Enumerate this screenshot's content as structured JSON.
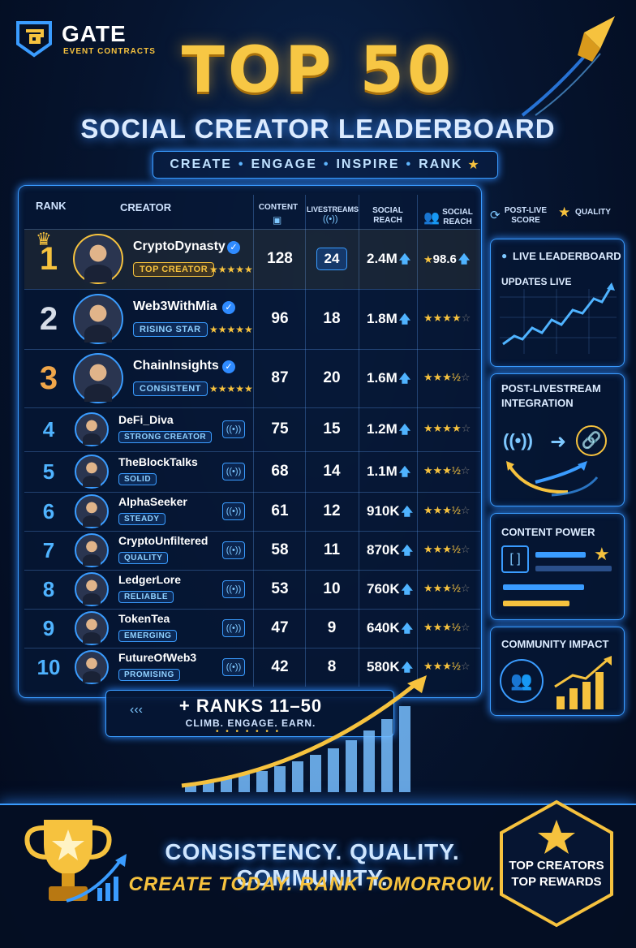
{
  "brand": {
    "name": "GATE",
    "sub": "EVENT CONTRACTS"
  },
  "title": {
    "main": "TOP 50",
    "sub": "SOCIAL CREATOR LEADERBOARD"
  },
  "tagline": [
    "CREATE",
    "ENGAGE",
    "INSPIRE",
    "RANK"
  ],
  "table": {
    "headers": {
      "rank": "RANK",
      "creator": "CREATOR",
      "content": "CONTENT",
      "livestreams": "LIVESTREAMS",
      "social_reach": "SOCIAL REACH",
      "social_reach2": "SOCIAL REACH",
      "post_live": "POST-LIVE SCORE",
      "quality": "QUALITY"
    },
    "rows": [
      {
        "rank": "1",
        "name": "CryptoDynasty",
        "badge": "TOP CREATOR",
        "content": "128",
        "livestreams": "24",
        "reach": "2.4M",
        "score": "98.6"
      },
      {
        "rank": "2",
        "name": "Web3WithMia",
        "badge": "RISING STAR",
        "content": "96",
        "livestreams": "18",
        "reach": "1.8M",
        "score": ""
      },
      {
        "rank": "3",
        "name": "ChainInsights",
        "badge": "CONSISTENT",
        "content": "87",
        "livestreams": "20",
        "reach": "1.6M",
        "score": ""
      },
      {
        "rank": "4",
        "name": "DeFi_Diva",
        "badge": "STRONG CREATOR",
        "content": "75",
        "livestreams": "15",
        "reach": "1.2M",
        "score": ""
      },
      {
        "rank": "5",
        "name": "TheBlockTalks",
        "badge": "SOLID",
        "content": "68",
        "livestreams": "14",
        "reach": "1.1M",
        "score": ""
      },
      {
        "rank": "6",
        "name": "AlphaSeeker",
        "badge": "STEADY",
        "content": "61",
        "livestreams": "12",
        "reach": "910K",
        "score": ""
      },
      {
        "rank": "7",
        "name": "CryptoUnfiltered",
        "badge": "QUALITY",
        "content": "58",
        "livestreams": "11",
        "reach": "870K",
        "score": ""
      },
      {
        "rank": "8",
        "name": "LedgerLore",
        "badge": "RELIABLE",
        "content": "53",
        "livestreams": "10",
        "reach": "760K",
        "score": ""
      },
      {
        "rank": "9",
        "name": "TokenTea",
        "badge": "EMERGING",
        "content": "47",
        "livestreams": "9",
        "reach": "640K",
        "score": ""
      },
      {
        "rank": "10",
        "name": "FutureOfWeb3",
        "badge": "PROMISING",
        "content": "42",
        "livestreams": "8",
        "reach": "580K",
        "score": ""
      }
    ]
  },
  "side": {
    "live": {
      "title": "LIVE LEADERBOARD",
      "sub": "UPDATES LIVE"
    },
    "post": {
      "title": "POST-LIVESTREAM INTEGRATION"
    },
    "content": {
      "title": "CONTENT POWER"
    },
    "community": {
      "title": "COMMUNITY IMPACT"
    }
  },
  "ranks": {
    "title": "+ RANKS 11–50",
    "sub": "CLIMB. ENGAGE. EARN."
  },
  "footer": {
    "line1": "CONSISTENCY. QUALITY. COMMUNITY.",
    "line2": "CREATE TODAY. RANK TOMORROW.",
    "hex1": "TOP CREATORS",
    "hex2": "TOP REWARDS"
  },
  "colors": {
    "gold": "#f6c23e",
    "blue": "#3a9cff",
    "bg": "#061530"
  }
}
